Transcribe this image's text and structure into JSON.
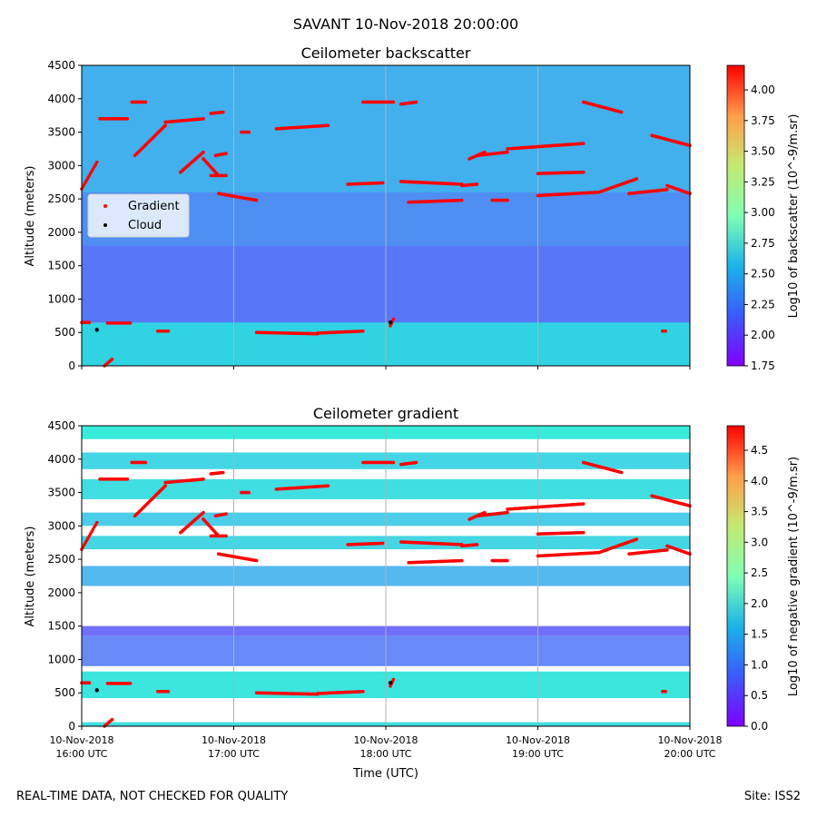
{
  "suptitle": "SAVANT 10-Nov-2018 20:00:00",
  "footer": {
    "left": "REAL-TIME DATA, NOT CHECKED FOR QUALITY",
    "right": "Site: ISS2"
  },
  "colors": {
    "gradient_marker": "#ff0000",
    "cloud_marker": "#000000",
    "grid": "#b0b0b0"
  },
  "chart_data": [
    {
      "type": "heatmap",
      "title": "Ceilometer backscatter",
      "ylabel": "Altitude (meters)",
      "ylim": [
        0,
        4500
      ],
      "yticks": [
        0,
        500,
        1000,
        1500,
        2000,
        2500,
        3000,
        3500,
        4000,
        4500
      ],
      "grid": "vertical at hourly ticks",
      "colormap": "rainbow",
      "colorbar": {
        "label": "Log10 of backscatter (10^-9/m.sr)",
        "range": [
          1.75,
          4.2
        ],
        "ticks": [
          1.75,
          2.0,
          2.25,
          2.5,
          2.75,
          3.0,
          3.25,
          3.5,
          3.75,
          4.0
        ],
        "tick_labels": [
          "1.75",
          "2.00",
          "2.25",
          "2.50",
          "2.75",
          "3.00",
          "3.25",
          "3.50",
          "3.75",
          "4.00"
        ]
      },
      "legend": {
        "placement": "center-left",
        "entries": [
          "Gradient",
          "Cloud"
        ]
      },
      "field_bands": [
        {
          "alt": [
            0,
            650
          ],
          "value": 2.55
        },
        {
          "alt": [
            650,
            1800
          ],
          "value": 2.1
        },
        {
          "alt": [
            1800,
            2600
          ],
          "value": 2.2
        },
        {
          "alt": [
            2600,
            4500
          ],
          "value": 2.35
        }
      ]
    },
    {
      "type": "heatmap",
      "title": "Ceilometer gradient",
      "ylabel": "Altitude (meters)",
      "xlabel": "Time (UTC)",
      "ylim": [
        0,
        4500
      ],
      "yticks": [
        0,
        500,
        1000,
        1500,
        2000,
        2500,
        3000,
        3500,
        4000,
        4500
      ],
      "grid": "vertical at hourly ticks",
      "colormap": "rainbow",
      "colorbar": {
        "label": "Log10 of negative gradient (10^-9/m.sr)",
        "range": [
          0,
          4.9
        ],
        "ticks": [
          0,
          0.5,
          1.0,
          1.5,
          2.0,
          2.5,
          3.0,
          3.5,
          4.0,
          4.5
        ],
        "tick_labels": [
          "0.0",
          "0.5",
          "1.0",
          "1.5",
          "2.0",
          "2.5",
          "3.0",
          "3.5",
          "4.0",
          "4.5"
        ]
      },
      "layers": [
        {
          "alt": [
            0,
            60
          ],
          "value": 1.6
        },
        {
          "alt": [
            420,
            820
          ],
          "value": 1.7
        },
        {
          "alt": [
            900,
            1350
          ],
          "value": 0.8
        },
        {
          "alt": [
            1350,
            1500
          ],
          "value": 0.6
        },
        {
          "alt": [
            2100,
            2400
          ],
          "value": 1.2
        },
        {
          "alt": [
            2650,
            2850
          ],
          "value": 1.5
        },
        {
          "alt": [
            3000,
            3200
          ],
          "value": 1.4
        },
        {
          "alt": [
            3400,
            3700
          ],
          "value": 1.6
        },
        {
          "alt": [
            3850,
            4100
          ],
          "value": 1.5
        },
        {
          "alt": [
            4300,
            4500
          ],
          "value": 1.8
        }
      ]
    }
  ],
  "time_axis": {
    "range_hours": [
      16,
      20
    ],
    "ticks": [
      {
        "hour": 16,
        "date": "10-Nov-2018",
        "time": "16:00 UTC"
      },
      {
        "hour": 17,
        "date": "10-Nov-2018",
        "time": "17:00 UTC"
      },
      {
        "hour": 18,
        "date": "10-Nov-2018",
        "time": "18:00 UTC"
      },
      {
        "hour": 19,
        "date": "10-Nov-2018",
        "time": "19:00 UTC"
      },
      {
        "hour": 20,
        "date": "10-Nov-2018",
        "time": "20:00 UTC"
      }
    ]
  },
  "gradient_series": [
    {
      "t": [
        16.0,
        16.1
      ],
      "alt": [
        2650,
        3050
      ]
    },
    {
      "t": [
        16.12,
        16.3
      ],
      "alt": [
        3700,
        3700
      ]
    },
    {
      "t": [
        16.17,
        16.32
      ],
      "alt": [
        640,
        640
      ]
    },
    {
      "t": [
        16.0,
        16.05
      ],
      "alt": [
        650,
        650
      ]
    },
    {
      "t": [
        16.15,
        16.2
      ],
      "alt": [
        0,
        100
      ]
    },
    {
      "t": [
        16.33,
        16.42
      ],
      "alt": [
        3950,
        3950
      ]
    },
    {
      "t": [
        16.35,
        16.55
      ],
      "alt": [
        3150,
        3600
      ]
    },
    {
      "t": [
        16.5,
        16.57
      ],
      "alt": [
        520,
        520
      ]
    },
    {
      "t": [
        16.55,
        16.8
      ],
      "alt": [
        3650,
        3700
      ]
    },
    {
      "t": [
        16.65,
        16.8
      ],
      "alt": [
        2900,
        3200
      ]
    },
    {
      "t": [
        16.8,
        16.9
      ],
      "alt": [
        3100,
        2850
      ]
    },
    {
      "t": [
        16.85,
        16.93
      ],
      "alt": [
        3780,
        3800
      ]
    },
    {
      "t": [
        16.85,
        16.95
      ],
      "alt": [
        2850,
        2850
      ]
    },
    {
      "t": [
        16.88,
        16.95
      ],
      "alt": [
        3150,
        3180
      ]
    },
    {
      "t": [
        16.9,
        17.15
      ],
      "alt": [
        2580,
        2480
      ]
    },
    {
      "t": [
        17.05,
        17.1
      ],
      "alt": [
        3500,
        3500
      ]
    },
    {
      "t": [
        17.15,
        17.55
      ],
      "alt": [
        500,
        480
      ]
    },
    {
      "t": [
        17.28,
        17.62
      ],
      "alt": [
        3550,
        3600
      ]
    },
    {
      "t": [
        17.55,
        17.85
      ],
      "alt": [
        490,
        520
      ]
    },
    {
      "t": [
        17.75,
        17.98
      ],
      "alt": [
        2720,
        2740
      ]
    },
    {
      "t": [
        17.85,
        18.05
      ],
      "alt": [
        3950,
        3950
      ]
    },
    {
      "t": [
        18.03,
        18.05
      ],
      "alt": [
        600,
        700
      ]
    },
    {
      "t": [
        18.1,
        18.2
      ],
      "alt": [
        3920,
        3950
      ]
    },
    {
      "t": [
        18.1,
        18.5
      ],
      "alt": [
        2760,
        2720
      ]
    },
    {
      "t": [
        18.15,
        18.5
      ],
      "alt": [
        2450,
        2480
      ]
    },
    {
      "t": [
        18.5,
        18.6
      ],
      "alt": [
        2700,
        2720
      ]
    },
    {
      "t": [
        18.55,
        18.65
      ],
      "alt": [
        3100,
        3200
      ]
    },
    {
      "t": [
        18.6,
        18.8
      ],
      "alt": [
        3150,
        3200
      ]
    },
    {
      "t": [
        18.7,
        18.8
      ],
      "alt": [
        2480,
        2480
      ]
    },
    {
      "t": [
        18.8,
        19.3
      ],
      "alt": [
        3250,
        3330
      ]
    },
    {
      "t": [
        19.0,
        19.3
      ],
      "alt": [
        2880,
        2900
      ]
    },
    {
      "t": [
        19.0,
        19.4
      ],
      "alt": [
        2550,
        2600
      ]
    },
    {
      "t": [
        19.3,
        19.55
      ],
      "alt": [
        3950,
        3800
      ]
    },
    {
      "t": [
        19.4,
        19.65
      ],
      "alt": [
        2600,
        2800
      ]
    },
    {
      "t": [
        19.6,
        19.85
      ],
      "alt": [
        2580,
        2640
      ]
    },
    {
      "t": [
        19.75,
        20.0
      ],
      "alt": [
        3450,
        3300
      ]
    },
    {
      "t": [
        19.85,
        20.0
      ],
      "alt": [
        2700,
        2580
      ]
    },
    {
      "t": [
        19.82,
        19.84
      ],
      "alt": [
        520,
        520
      ]
    }
  ],
  "cloud_points": [
    {
      "t": 16.1,
      "alt": 540
    },
    {
      "t": 18.03,
      "alt": 650
    }
  ]
}
